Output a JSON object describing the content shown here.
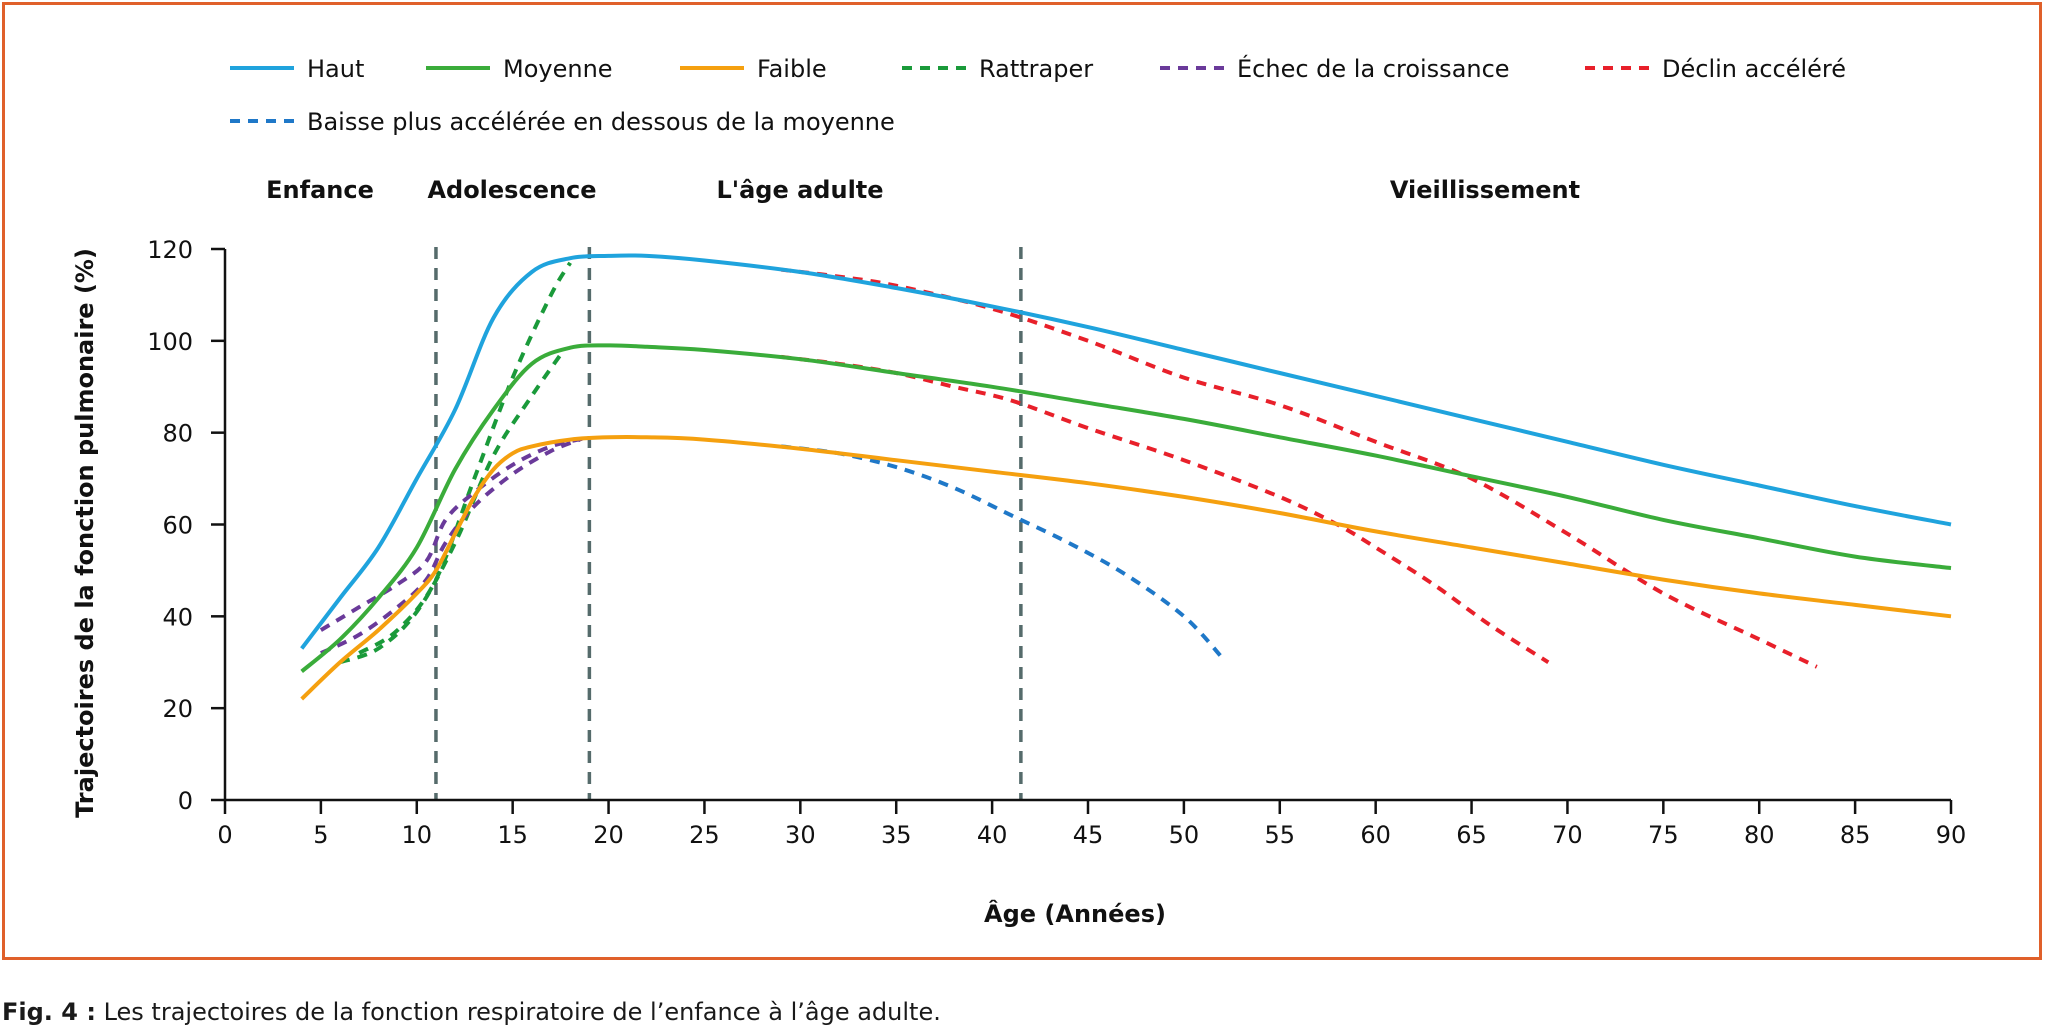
{
  "caption": {
    "label": "Fig. 4 :",
    "text": "Les trajectoires de la fonction respiratoire de l’enfance à l’âge adulte."
  },
  "colors": {
    "frame": "#e0602a",
    "haut": "#1fa3dd",
    "moyenne": "#3aac3a",
    "faible": "#f5a00f",
    "rattraper": "#1a9a3a",
    "echec": "#6a3a9a",
    "declin": "#e8202a",
    "baisse": "#1f78c8",
    "phase_lines": "#556b6b"
  },
  "chart_data": {
    "type": "line",
    "xlabel": "Âge (Années)",
    "ylabel": "Trajectoires de la fonction pulmonaire (%)",
    "xlim": [
      0,
      90
    ],
    "ylim": [
      0,
      120
    ],
    "xticks": [
      0,
      5,
      10,
      15,
      20,
      25,
      30,
      35,
      40,
      45,
      50,
      55,
      60,
      65,
      70,
      75,
      80,
      85,
      90
    ],
    "yticks": [
      0,
      20,
      40,
      60,
      80,
      100,
      120
    ],
    "phases": [
      {
        "label": "Enfance",
        "x": 5
      },
      {
        "label": "Adolescence",
        "x": 15
      },
      {
        "label": "L'âge adulte",
        "x": 30
      },
      {
        "label": "Vieillissement",
        "x": 66
      }
    ],
    "phase_boundaries": [
      11,
      19,
      41.5
    ],
    "legend": [
      {
        "name": "Haut",
        "style": "solid",
        "color_key": "haut"
      },
      {
        "name": "Moyenne",
        "style": "solid",
        "color_key": "moyenne"
      },
      {
        "name": "Faible",
        "style": "solid",
        "color_key": "faible"
      },
      {
        "name": "Rattraper",
        "style": "dashed",
        "color_key": "rattraper"
      },
      {
        "name": "Échec de la croissance",
        "style": "dashed",
        "color_key": "echec"
      },
      {
        "name": "Déclin accéléré",
        "style": "dashed",
        "color_key": "declin"
      },
      {
        "name": "Baisse plus accélérée en dessous de la moyenne",
        "style": "dashed",
        "color_key": "baisse"
      }
    ],
    "series": [
      {
        "name": "Haut",
        "style": "solid",
        "color_key": "haut",
        "points": [
          [
            4,
            33
          ],
          [
            6,
            44
          ],
          [
            8,
            55
          ],
          [
            10,
            70
          ],
          [
            12,
            85
          ],
          [
            14,
            105
          ],
          [
            16,
            115
          ],
          [
            18,
            118
          ],
          [
            20,
            118.5
          ],
          [
            22,
            118.5
          ],
          [
            25,
            117.5
          ],
          [
            30,
            115
          ],
          [
            35,
            111.5
          ],
          [
            40,
            107.5
          ],
          [
            45,
            103
          ],
          [
            50,
            98
          ],
          [
            55,
            93
          ],
          [
            60,
            88
          ],
          [
            65,
            83
          ],
          [
            70,
            78
          ],
          [
            75,
            73
          ],
          [
            80,
            68.5
          ],
          [
            85,
            64
          ],
          [
            90,
            60
          ]
        ]
      },
      {
        "name": "Moyenne",
        "style": "solid",
        "color_key": "moyenne",
        "points": [
          [
            4,
            28
          ],
          [
            6,
            35
          ],
          [
            8,
            44
          ],
          [
            10,
            55
          ],
          [
            12,
            72
          ],
          [
            14,
            85
          ],
          [
            16,
            95
          ],
          [
            18,
            98.5
          ],
          [
            20,
            99
          ],
          [
            22,
            98.7
          ],
          [
            25,
            98
          ],
          [
            30,
            96
          ],
          [
            35,
            93
          ],
          [
            40,
            90
          ],
          [
            45,
            86.5
          ],
          [
            50,
            83
          ],
          [
            55,
            79
          ],
          [
            60,
            75
          ],
          [
            65,
            70.5
          ],
          [
            70,
            66
          ],
          [
            75,
            61
          ],
          [
            80,
            57
          ],
          [
            85,
            53
          ],
          [
            90,
            50.5
          ]
        ]
      },
      {
        "name": "Faible",
        "style": "solid",
        "color_key": "faible",
        "points": [
          [
            4,
            22
          ],
          [
            6,
            30
          ],
          [
            8,
            37
          ],
          [
            10,
            45
          ],
          [
            11,
            50
          ],
          [
            12,
            58
          ],
          [
            13,
            66
          ],
          [
            14,
            72
          ],
          [
            15,
            75.5
          ],
          [
            16,
            77
          ],
          [
            18,
            78.5
          ],
          [
            20,
            79
          ],
          [
            22,
            79
          ],
          [
            25,
            78.5
          ],
          [
            30,
            76.5
          ],
          [
            35,
            74
          ],
          [
            40,
            71.5
          ],
          [
            45,
            69
          ],
          [
            50,
            66
          ],
          [
            55,
            62.5
          ],
          [
            60,
            58.5
          ],
          [
            65,
            55
          ],
          [
            70,
            51.5
          ],
          [
            75,
            48
          ],
          [
            80,
            45
          ],
          [
            85,
            42.5
          ],
          [
            90,
            40
          ]
        ]
      },
      {
        "name": "Rattraper",
        "style": "dashed",
        "color_key": "rattraper",
        "points": [
          [
            7,
            32
          ],
          [
            9,
            37
          ],
          [
            11,
            48
          ],
          [
            13,
            70
          ],
          [
            15,
            92
          ],
          [
            17,
            110
          ],
          [
            18,
            117
          ]
        ]
      },
      {
        "name": "Rattraper",
        "style": "dashed",
        "color_key": "rattraper",
        "points": [
          [
            6,
            30
          ],
          [
            8,
            33
          ],
          [
            10,
            41
          ],
          [
            12,
            56
          ],
          [
            14,
            75
          ],
          [
            16,
            88
          ],
          [
            17.5,
            97
          ]
        ]
      },
      {
        "name": "Échec de la croissance",
        "style": "dashed",
        "color_key": "echec",
        "points": [
          [
            5,
            37
          ],
          [
            7,
            42
          ],
          [
            9,
            47
          ],
          [
            10.5,
            52
          ],
          [
            11.5,
            61
          ],
          [
            13,
            67
          ],
          [
            15,
            73
          ],
          [
            17,
            77
          ],
          [
            19,
            79
          ]
        ]
      },
      {
        "name": "Échec de la croissance",
        "style": "dashed",
        "color_key": "echec",
        "points": [
          [
            5,
            32
          ],
          [
            7,
            36
          ],
          [
            9,
            42
          ],
          [
            10.5,
            48
          ],
          [
            11.5,
            56
          ],
          [
            13,
            64
          ],
          [
            15,
            71
          ],
          [
            17,
            76
          ],
          [
            18.5,
            78.5
          ]
        ]
      },
      {
        "name": "Déclin accéléré",
        "style": "dashed",
        "color_key": "declin",
        "points": [
          [
            29,
            115.5
          ],
          [
            32,
            114
          ],
          [
            35,
            112
          ],
          [
            40,
            107
          ],
          [
            45,
            100
          ],
          [
            50,
            92
          ],
          [
            55,
            86
          ],
          [
            60,
            78
          ],
          [
            65,
            70
          ],
          [
            70,
            58
          ],
          [
            75,
            45
          ],
          [
            80,
            35
          ],
          [
            83,
            29
          ]
        ]
      },
      {
        "name": "Déclin accéléré",
        "style": "dashed",
        "color_key": "declin",
        "points": [
          [
            29,
            96.5
          ],
          [
            32,
            95
          ],
          [
            35,
            93
          ],
          [
            38,
            90
          ],
          [
            41,
            87
          ],
          [
            45,
            81
          ],
          [
            50,
            74
          ],
          [
            55,
            66
          ],
          [
            58,
            60
          ],
          [
            60,
            55
          ],
          [
            63,
            47
          ],
          [
            66,
            38
          ],
          [
            69,
            30
          ]
        ]
      },
      {
        "name": "Baisse plus accélérée en dessous de la moyenne",
        "style": "dashed",
        "color_key": "baisse",
        "points": [
          [
            29,
            77
          ],
          [
            32,
            75.5
          ],
          [
            35,
            72.5
          ],
          [
            38,
            68
          ],
          [
            41,
            62
          ],
          [
            44,
            56
          ],
          [
            47,
            49
          ],
          [
            50,
            40
          ],
          [
            52,
            31
          ]
        ]
      }
    ]
  }
}
